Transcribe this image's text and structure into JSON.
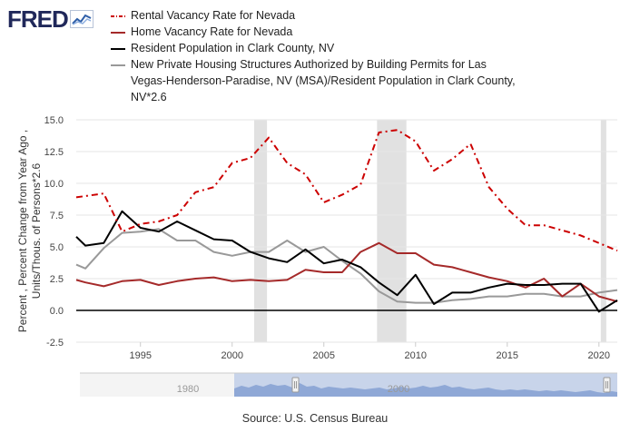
{
  "header": {
    "logo_text": "FRED",
    "logo_icon": "line-chart-icon"
  },
  "colors": {
    "rental": "#cc0000",
    "home": "#a52a2a",
    "population": "#000000",
    "permits": "#999999",
    "recession": "#e1e1e1",
    "navigator": "#8fa8d6"
  },
  "legend": [
    {
      "label": "Rental Vacancy Rate for Nevada",
      "color": "#cc0000",
      "style": "dashed"
    },
    {
      "label": "Home Vacancy Rate for Nevada",
      "color": "#a52a2a",
      "style": "solid"
    },
    {
      "label": "Resident Population in Clark County, NV",
      "color": "#000000",
      "style": "solid"
    },
    {
      "label": "New Private Housing Structures Authorized by Building Permits for Las Vegas-Henderson-Paradise, NV (MSA)/Resident Population in Clark County, NV*2.6",
      "color": "#999999",
      "style": "solid"
    }
  ],
  "chart_data": {
    "type": "line",
    "title": "",
    "xlabel": "",
    "ylabel": "Percent , Percent Change from Year Ago , Units/Thous. of Persons*2.6",
    "xlim": [
      1991.5,
      2021.0
    ],
    "ylim": [
      -2.5,
      15.0
    ],
    "yticks": [
      "-2.5",
      "0.0",
      "2.5",
      "5.0",
      "7.5",
      "10.0",
      "12.5",
      "15.0"
    ],
    "xticks": [
      "1995",
      "2000",
      "2005",
      "2010",
      "2015",
      "2020"
    ],
    "recessions": [
      [
        2001.2,
        2001.9
      ],
      [
        2007.9,
        2009.5
      ],
      [
        2020.1,
        2020.4
      ]
    ],
    "zero_line": true,
    "series": [
      {
        "name": "Rental Vacancy Rate for Nevada",
        "x": [
          1991.5,
          1992,
          1993,
          1994,
          1995,
          1996,
          1997,
          1998,
          1999,
          2000,
          2001,
          2002,
          2003,
          2004,
          2005,
          2006,
          2007,
          2008,
          2009,
          2010,
          2011,
          2012,
          2013,
          2014,
          2015,
          2016,
          2017,
          2018,
          2019,
          2020,
          2021
        ],
        "values": [
          8.9,
          9.0,
          9.2,
          6.2,
          6.8,
          7.0,
          7.5,
          9.3,
          9.7,
          11.6,
          12.0,
          13.6,
          11.6,
          10.7,
          8.5,
          9.1,
          9.9,
          14.0,
          14.2,
          13.3,
          11.0,
          11.9,
          13.1,
          9.7,
          8.0,
          6.7,
          6.7,
          6.3,
          5.9,
          5.3,
          4.7
        ]
      },
      {
        "name": "Home Vacancy Rate for Nevada",
        "x": [
          1991.5,
          1992,
          1993,
          1994,
          1995,
          1996,
          1997,
          1998,
          1999,
          2000,
          2001,
          2002,
          2003,
          2004,
          2005,
          2006,
          2007,
          2008,
          2009,
          2010,
          2011,
          2012,
          2013,
          2014,
          2015,
          2016,
          2017,
          2018,
          2019,
          2020,
          2021
        ],
        "values": [
          2.4,
          2.2,
          1.9,
          2.3,
          2.4,
          2.0,
          2.3,
          2.5,
          2.6,
          2.3,
          2.4,
          2.3,
          2.4,
          3.2,
          3.0,
          3.0,
          4.6,
          5.3,
          4.5,
          4.5,
          3.6,
          3.4,
          3.0,
          2.6,
          2.3,
          1.8,
          2.5,
          1.1,
          2.1,
          1.1,
          0.7
        ]
      },
      {
        "name": "Resident Population in Clark County, NV",
        "x": [
          1991.5,
          1992,
          1993,
          1994,
          1995,
          1996,
          1997,
          1998,
          1999,
          2000,
          2001,
          2002,
          2003,
          2004,
          2005,
          2006,
          2007,
          2008,
          2009,
          2010,
          2011,
          2012,
          2013,
          2014,
          2015,
          2016,
          2017,
          2018,
          2019,
          2020,
          2021
        ],
        "values": [
          5.8,
          5.1,
          5.3,
          7.8,
          6.5,
          6.2,
          7.0,
          6.3,
          5.6,
          5.5,
          4.6,
          4.1,
          3.8,
          4.8,
          3.7,
          4.0,
          3.4,
          2.2,
          1.2,
          2.8,
          0.5,
          1.4,
          1.4,
          1.8,
          2.1,
          2.0,
          2.0,
          2.1,
          2.1,
          -0.1,
          0.8
        ]
      },
      {
        "name": "New Private Housing Structures Authorized by Building Permits for Las Vegas-Henderson-Paradise, NV (MSA)/Resident Population in Clark County, NV*2.6",
        "x": [
          1991.5,
          1992,
          1993,
          1994,
          1995,
          1996,
          1997,
          1998,
          1999,
          2000,
          2001,
          2002,
          2003,
          2004,
          2005,
          2006,
          2007,
          2008,
          2009,
          2010,
          2011,
          2012,
          2013,
          2014,
          2015,
          2016,
          2017,
          2018,
          2019,
          2020,
          2021
        ],
        "values": [
          3.6,
          3.3,
          4.9,
          6.1,
          6.2,
          6.4,
          5.5,
          5.5,
          4.6,
          4.3,
          4.6,
          4.6,
          5.5,
          4.6,
          5.0,
          3.9,
          2.9,
          1.5,
          0.7,
          0.6,
          0.6,
          0.8,
          0.9,
          1.1,
          1.1,
          1.3,
          1.3,
          1.1,
          1.1,
          1.4,
          1.6
        ]
      }
    ]
  },
  "navigator": {
    "labels": [
      "1980",
      "2000"
    ]
  },
  "footer": {
    "source": "Source: U.S. Census Bureau"
  }
}
